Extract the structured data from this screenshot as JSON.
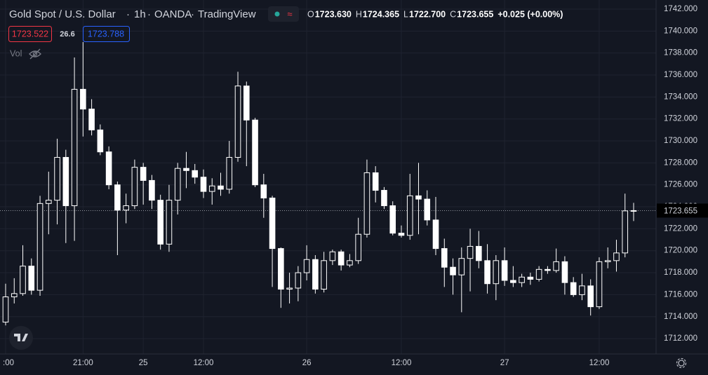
{
  "chart_data": {
    "type": "candlestick",
    "symbol": "Gold Spot / U.S. Dollar",
    "interval": "1h",
    "broker": "OANDA",
    "source": "TradingView",
    "ohlc_header": {
      "open_key": "O",
      "open": "1723.630",
      "high_key": "H",
      "high": "1724.365",
      "low_key": "L",
      "low": "1722.700",
      "close_key": "C",
      "close": "1723.655",
      "change": "+0.025 (+0.00%)"
    },
    "bid": "1723.522",
    "spread": "26.6",
    "ask": "1723.788",
    "volume_label": "Vol",
    "categories": [
      ":00",
      null,
      null,
      null,
      null,
      null,
      null,
      null,
      null,
      "21:00",
      null,
      null,
      null,
      null,
      null,
      null,
      "25",
      null,
      null,
      null,
      null,
      null,
      null,
      "12:00",
      null,
      null,
      null,
      null,
      null,
      null,
      null,
      null,
      null,
      null,
      null,
      "26",
      null,
      null,
      null,
      null,
      null,
      null,
      null,
      null,
      null,
      null,
      "12:00",
      null,
      null,
      null,
      null,
      null,
      null,
      null,
      null,
      null,
      null,
      null,
      "27",
      null,
      null,
      null,
      null,
      null,
      null,
      null,
      null,
      null,
      null,
      "12:00",
      null,
      null,
      null,
      null
    ],
    "open": [
      1713.5,
      1715.8,
      1716.1,
      1718.6,
      1716.4,
      1724.3,
      1724.6,
      1728.5,
      1724.1,
      1734.7,
      1732.9,
      1731,
      1729,
      1726,
      1723.7,
      1724.1,
      1727.6,
      1726.4,
      1724.6,
      1720.6,
      1724.6,
      1727.5,
      1727.3,
      1726.7,
      1725.4,
      1725.9,
      1725.6,
      1728.5,
      1735,
      1731.9,
      1726,
      1724.8,
      1720.2,
      1716.5,
      1716.6,
      1718,
      1719.2,
      1716.5,
      1719.1,
      1719.9,
      1718.7,
      1719.1,
      1721.5,
      1727.1,
      1725.5,
      1724.1,
      1721.6,
      1721.4,
      1725,
      1724.7,
      1722.8,
      1720.2,
      1718.5,
      1717.8,
      1719.3,
      1720.4,
      1719.1,
      1717,
      1719.1,
      1717.3,
      1717.1,
      1717.6,
      1717.4,
      1718.3,
      1718.2,
      1719,
      1717.1,
      1716,
      1716.8,
      1714.9,
      1719,
      1719.1,
      1719.8,
      1723.63
    ],
    "high": [
      1717.0,
      1717.5,
      1720.5,
      1719.3,
      1725.0,
      1727.2,
      1730.2,
      1729.2,
      1737.6,
      1739.0,
      1733.8,
      1731.5,
      1729.5,
      1726.3,
      1725.2,
      1728.3,
      1728.0,
      1726.9,
      1725.1,
      1726.0,
      1728.0,
      1729.0,
      1727.9,
      1727.4,
      1726.6,
      1727.1,
      1730.0,
      1736.3,
      1735.4,
      1732.1,
      1727.0,
      1725.0,
      1720.3,
      1718.0,
      1718.6,
      1720.5,
      1719.6,
      1719.9,
      1720.1,
      1720.1,
      1719.7,
      1723.0,
      1728.3,
      1727.7,
      1725.8,
      1724.5,
      1722.3,
      1727.0,
      1728.0,
      1725.5,
      1724.9,
      1721.1,
      1719.3,
      1720.3,
      1722.0,
      1721.8,
      1720.6,
      1719.6,
      1720.3,
      1718.6,
      1717.9,
      1718.0,
      1718.6,
      1718.6,
      1720.2,
      1719.5,
      1717.6,
      1717.9,
      1717.4,
      1719.4,
      1720.3,
      1721.0,
      1725.2,
      1724.365
    ],
    "low": [
      1713.2,
      1715.2,
      1715.9,
      1716.0,
      1715.9,
      1721.5,
      1722.4,
      1720.7,
      1720.9,
      1730.4,
      1730.5,
      1728.7,
      1725.6,
      1719.6,
      1722.5,
      1723.8,
      1724.2,
      1723.8,
      1720.1,
      1719.9,
      1723.3,
      1725.7,
      1726.1,
      1724.8,
      1724.2,
      1725.0,
      1725.2,
      1728.1,
      1727.7,
      1725.8,
      1723.0,
      1716.7,
      1714.8,
      1715.2,
      1715.4,
      1717.3,
      1716.1,
      1716.2,
      1718.7,
      1718.2,
      1718.5,
      1718.8,
      1721.2,
      1724.4,
      1723.8,
      1721.4,
      1721.2,
      1721.0,
      1721.5,
      1722.3,
      1719.6,
      1716.7,
      1716.0,
      1714.4,
      1716.3,
      1718.4,
      1716.1,
      1715.5,
      1716.8,
      1716.7,
      1716.7,
      1716.9,
      1717.2,
      1717.9,
      1718.0,
      1716.0,
      1715.8,
      1715.5,
      1714.1,
      1714.7,
      1718.4,
      1718.1,
      1719.4,
      1722.7
    ],
    "close": [
      1715.8,
      1716.1,
      1718.6,
      1716.4,
      1724.3,
      1724.6,
      1728.5,
      1724.1,
      1734.7,
      1732.9,
      1731,
      1729,
      1726,
      1723.7,
      1724.1,
      1727.6,
      1726.4,
      1724.6,
      1720.6,
      1724.6,
      1727.5,
      1727.3,
      1726.7,
      1725.4,
      1725.9,
      1725.6,
      1728.5,
      1735,
      1731.9,
      1726,
      1724.8,
      1720.2,
      1716.5,
      1716.6,
      1718,
      1719.2,
      1716.5,
      1719.1,
      1719.9,
      1718.7,
      1719.1,
      1721.5,
      1727.1,
      1725.5,
      1724.1,
      1721.6,
      1721.4,
      1725,
      1724.7,
      1722.8,
      1720.2,
      1718.5,
      1717.8,
      1719.3,
      1720.4,
      1719.1,
      1717,
      1719.1,
      1717.3,
      1717.1,
      1717.6,
      1717.4,
      1718.3,
      1718.2,
      1719,
      1717.1,
      1716,
      1716.8,
      1714.9,
      1719,
      1719.1,
      1719.8,
      1723.63,
      1723.655
    ],
    "up_color": "#131722",
    "down_color": "#ffffff",
    "wick_color": "#ffffff",
    "ylim": [
      1710.6,
      1742.83
    ],
    "yticks": [
      {
        "value": 1712,
        "label": "1712.000"
      },
      {
        "value": 1714,
        "label": "1714.000"
      },
      {
        "value": 1716,
        "label": "1716.000"
      },
      {
        "value": 1718,
        "label": "1718.000"
      },
      {
        "value": 1720,
        "label": "1720.000"
      },
      {
        "value": 1722,
        "label": "1722.000"
      },
      {
        "value": 1724,
        "label": "1724.000"
      },
      {
        "value": 1726,
        "label": "1726.000"
      },
      {
        "value": 1728,
        "label": "1728.000"
      },
      {
        "value": 1730,
        "label": "1730.000"
      },
      {
        "value": 1732,
        "label": "1732.000"
      },
      {
        "value": 1734,
        "label": "1734.000"
      },
      {
        "value": 1736,
        "label": "1736.000"
      },
      {
        "value": 1738,
        "label": "1738.000"
      },
      {
        "value": 1740,
        "label": "1740.000"
      },
      {
        "value": 1742,
        "label": "1742.000"
      }
    ],
    "grid": true
  }
}
